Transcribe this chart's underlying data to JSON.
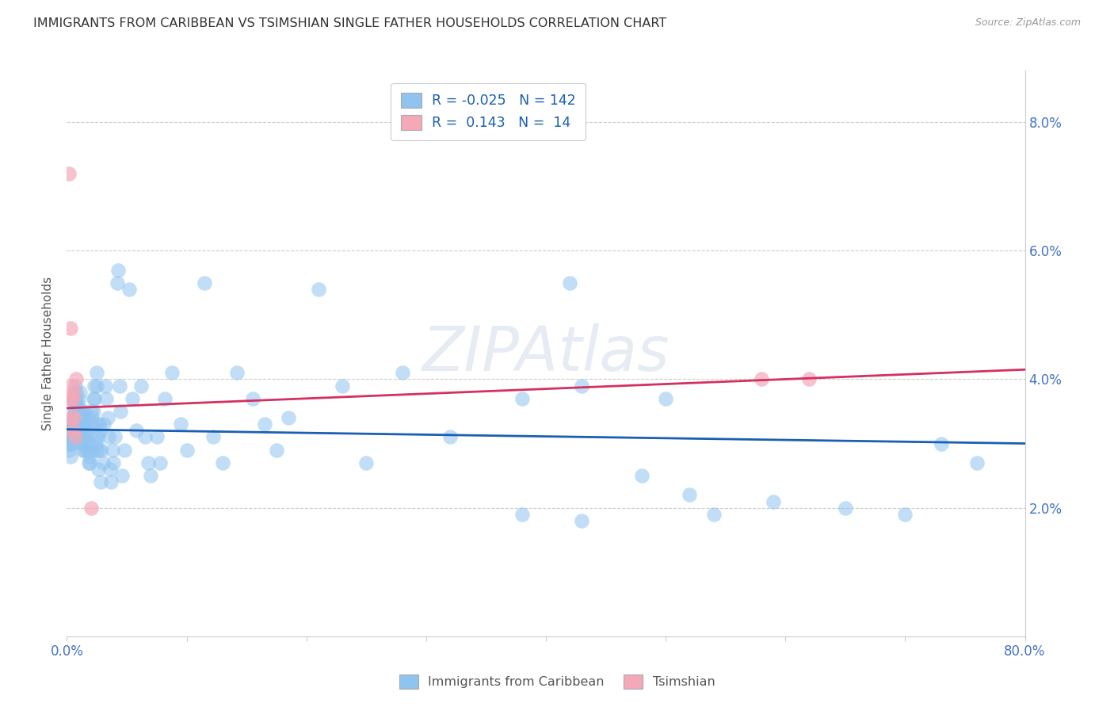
{
  "title": "IMMIGRANTS FROM CARIBBEAN VS TSIMSHIAN SINGLE FATHER HOUSEHOLDS CORRELATION CHART",
  "source": "Source: ZipAtlas.com",
  "ylabel": "Single Father Households",
  "xlim": [
    0.0,
    0.8
  ],
  "ylim": [
    -0.002,
    0.092
  ],
  "plot_ylim": [
    0.0,
    0.088
  ],
  "legend_label1": "Immigrants from Caribbean",
  "legend_label2": "Tsimshian",
  "r1": "-0.025",
  "n1": "142",
  "r2": "0.143",
  "n2": "14",
  "watermark": "ZIPAtlas",
  "blue_color": "#90c4f0",
  "pink_color": "#f4a8b8",
  "blue_line_color": "#1a5fb4",
  "pink_line_color": "#d43060",
  "axis_label_color": "#4472c4",
  "ytick_vals": [
    0.02,
    0.04,
    0.06,
    0.08
  ],
  "blue_line_y0": 0.0322,
  "blue_line_y1": 0.03,
  "pink_line_y0": 0.0355,
  "pink_line_y1": 0.0415,
  "blue_scatter": [
    [
      0.001,
      0.03
    ],
    [
      0.002,
      0.029
    ],
    [
      0.002,
      0.031
    ],
    [
      0.003,
      0.028
    ],
    [
      0.003,
      0.032
    ],
    [
      0.003,
      0.03
    ],
    [
      0.004,
      0.031
    ],
    [
      0.004,
      0.032
    ],
    [
      0.004,
      0.03
    ],
    [
      0.004,
      0.031
    ],
    [
      0.005,
      0.032
    ],
    [
      0.005,
      0.033
    ],
    [
      0.005,
      0.034
    ],
    [
      0.005,
      0.033
    ],
    [
      0.005,
      0.032
    ],
    [
      0.006,
      0.035
    ],
    [
      0.006,
      0.033
    ],
    [
      0.006,
      0.037
    ],
    [
      0.006,
      0.034
    ],
    [
      0.006,
      0.036
    ],
    [
      0.006,
      0.032
    ],
    [
      0.006,
      0.037
    ],
    [
      0.007,
      0.033
    ],
    [
      0.007,
      0.031
    ],
    [
      0.007,
      0.037
    ],
    [
      0.007,
      0.039
    ],
    [
      0.007,
      0.035
    ],
    [
      0.007,
      0.033
    ],
    [
      0.008,
      0.038
    ],
    [
      0.008,
      0.036
    ],
    [
      0.008,
      0.035
    ],
    [
      0.008,
      0.033
    ],
    [
      0.008,
      0.032
    ],
    [
      0.008,
      0.036
    ],
    [
      0.009,
      0.034
    ],
    [
      0.009,
      0.035
    ],
    [
      0.009,
      0.032
    ],
    [
      0.009,
      0.031
    ],
    [
      0.01,
      0.034
    ],
    [
      0.01,
      0.036
    ],
    [
      0.01,
      0.037
    ],
    [
      0.01,
      0.035
    ],
    [
      0.011,
      0.038
    ],
    [
      0.011,
      0.033
    ],
    [
      0.011,
      0.031
    ],
    [
      0.011,
      0.035
    ],
    [
      0.012,
      0.033
    ],
    [
      0.012,
      0.03
    ],
    [
      0.012,
      0.032
    ],
    [
      0.013,
      0.034
    ],
    [
      0.013,
      0.033
    ],
    [
      0.013,
      0.029
    ],
    [
      0.014,
      0.035
    ],
    [
      0.014,
      0.031
    ],
    [
      0.014,
      0.029
    ],
    [
      0.015,
      0.033
    ],
    [
      0.015,
      0.032
    ],
    [
      0.015,
      0.03
    ],
    [
      0.016,
      0.034
    ],
    [
      0.016,
      0.032
    ],
    [
      0.017,
      0.029
    ],
    [
      0.017,
      0.031
    ],
    [
      0.018,
      0.027
    ],
    [
      0.018,
      0.03
    ],
    [
      0.019,
      0.028
    ],
    [
      0.019,
      0.027
    ],
    [
      0.02,
      0.033
    ],
    [
      0.02,
      0.035
    ],
    [
      0.021,
      0.034
    ],
    [
      0.021,
      0.029
    ],
    [
      0.022,
      0.037
    ],
    [
      0.022,
      0.035
    ],
    [
      0.023,
      0.039
    ],
    [
      0.023,
      0.037
    ],
    [
      0.024,
      0.031
    ],
    [
      0.024,
      0.03
    ],
    [
      0.025,
      0.039
    ],
    [
      0.025,
      0.041
    ],
    [
      0.025,
      0.033
    ],
    [
      0.025,
      0.029
    ],
    [
      0.026,
      0.026
    ],
    [
      0.026,
      0.031
    ],
    [
      0.027,
      0.029
    ],
    [
      0.027,
      0.033
    ],
    [
      0.028,
      0.032
    ],
    [
      0.028,
      0.024
    ],
    [
      0.029,
      0.029
    ],
    [
      0.03,
      0.027
    ],
    [
      0.031,
      0.033
    ],
    [
      0.032,
      0.039
    ],
    [
      0.033,
      0.037
    ],
    [
      0.034,
      0.034
    ],
    [
      0.035,
      0.031
    ],
    [
      0.036,
      0.026
    ],
    [
      0.037,
      0.024
    ],
    [
      0.038,
      0.029
    ],
    [
      0.039,
      0.027
    ],
    [
      0.04,
      0.031
    ],
    [
      0.042,
      0.055
    ],
    [
      0.043,
      0.057
    ],
    [
      0.044,
      0.039
    ],
    [
      0.045,
      0.035
    ],
    [
      0.046,
      0.025
    ],
    [
      0.048,
      0.029
    ],
    [
      0.052,
      0.054
    ],
    [
      0.055,
      0.037
    ],
    [
      0.058,
      0.032
    ],
    [
      0.062,
      0.039
    ],
    [
      0.065,
      0.031
    ],
    [
      0.068,
      0.027
    ],
    [
      0.07,
      0.025
    ],
    [
      0.075,
      0.031
    ],
    [
      0.078,
      0.027
    ],
    [
      0.082,
      0.037
    ],
    [
      0.088,
      0.041
    ],
    [
      0.095,
      0.033
    ],
    [
      0.1,
      0.029
    ],
    [
      0.115,
      0.055
    ],
    [
      0.122,
      0.031
    ],
    [
      0.13,
      0.027
    ],
    [
      0.142,
      0.041
    ],
    [
      0.155,
      0.037
    ],
    [
      0.165,
      0.033
    ],
    [
      0.175,
      0.029
    ],
    [
      0.185,
      0.034
    ],
    [
      0.21,
      0.054
    ],
    [
      0.23,
      0.039
    ],
    [
      0.25,
      0.027
    ],
    [
      0.28,
      0.041
    ],
    [
      0.32,
      0.031
    ],
    [
      0.38,
      0.037
    ],
    [
      0.43,
      0.039
    ],
    [
      0.42,
      0.055
    ],
    [
      0.5,
      0.037
    ],
    [
      0.54,
      0.019
    ],
    [
      0.59,
      0.021
    ],
    [
      0.65,
      0.02
    ],
    [
      0.7,
      0.019
    ],
    [
      0.73,
      0.03
    ],
    [
      0.76,
      0.027
    ],
    [
      0.38,
      0.019
    ],
    [
      0.43,
      0.018
    ],
    [
      0.48,
      0.025
    ],
    [
      0.52,
      0.022
    ]
  ],
  "pink_scatter": [
    [
      0.002,
      0.072
    ],
    [
      0.003,
      0.048
    ],
    [
      0.003,
      0.037
    ],
    [
      0.004,
      0.034
    ],
    [
      0.004,
      0.039
    ],
    [
      0.005,
      0.037
    ],
    [
      0.005,
      0.032
    ],
    [
      0.006,
      0.038
    ],
    [
      0.006,
      0.034
    ],
    [
      0.007,
      0.031
    ],
    [
      0.008,
      0.04
    ],
    [
      0.02,
      0.02
    ],
    [
      0.58,
      0.04
    ],
    [
      0.62,
      0.04
    ]
  ]
}
